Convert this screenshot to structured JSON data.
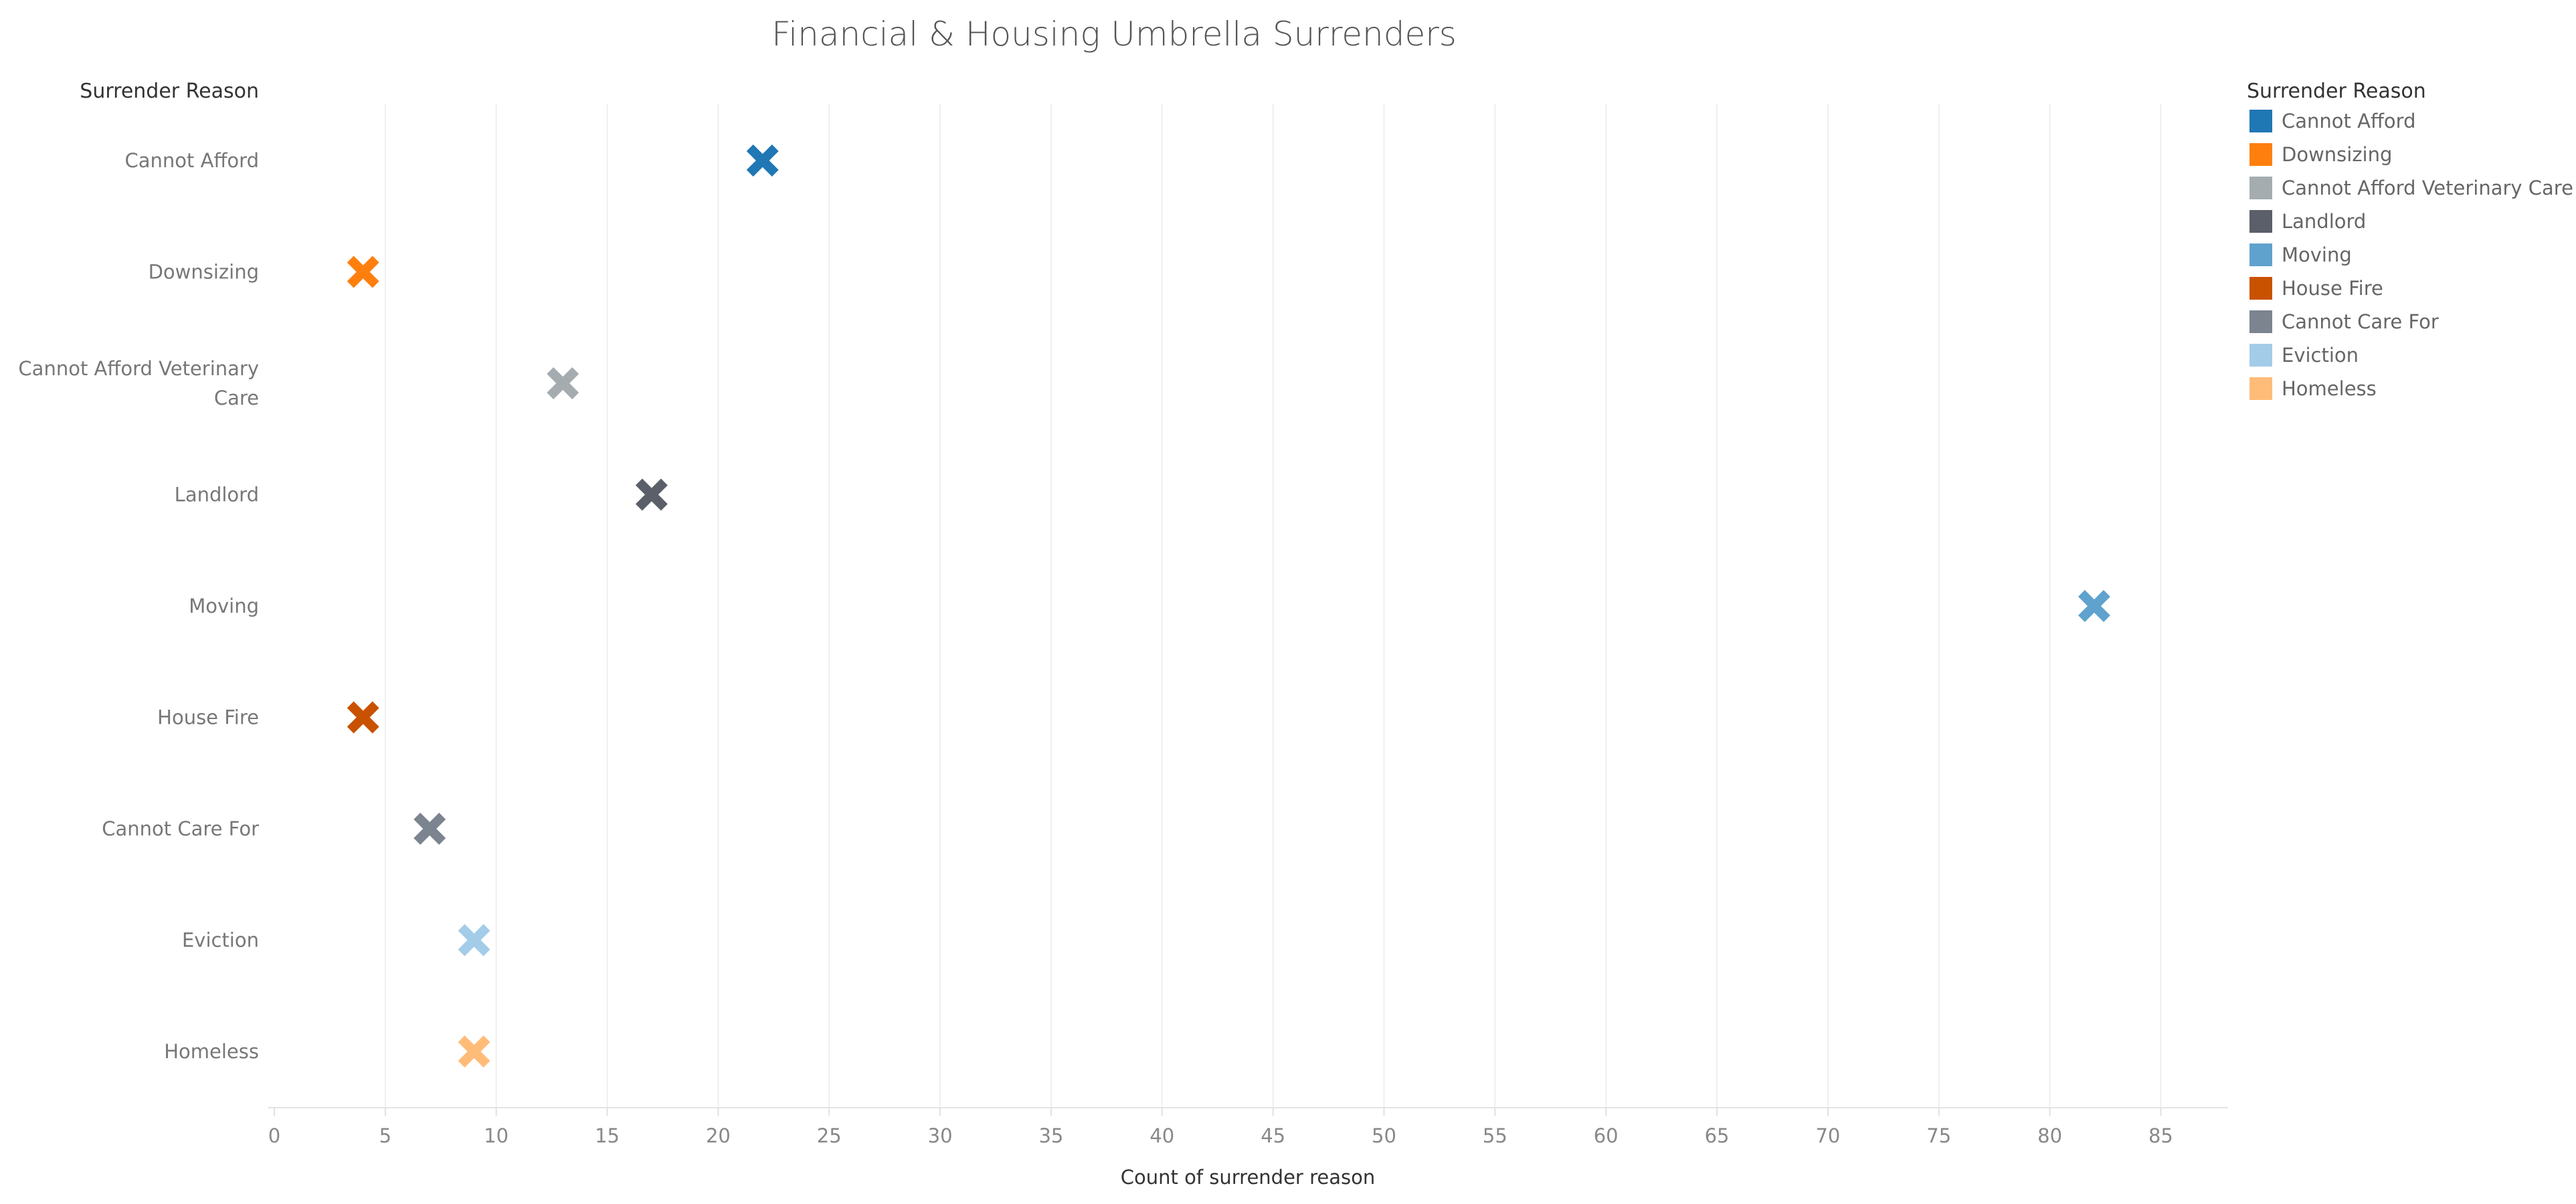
{
  "chart_data": {
    "type": "scatter",
    "title": "Financial & Housing Umbrella Surrenders",
    "row_header": "Surrender Reason",
    "xlabel": "Count of surrender reason",
    "xlim": [
      0,
      88
    ],
    "x_ticks": [
      0,
      5,
      10,
      15,
      20,
      25,
      30,
      35,
      40,
      45,
      50,
      55,
      60,
      65,
      70,
      75,
      80,
      85
    ],
    "grid": true,
    "marker": "x",
    "categories": [
      "Cannot Afford",
      "Downsizing",
      "Cannot Afford Veterinary Care",
      "Landlord",
      "Moving",
      "House Fire",
      "Cannot Care For",
      "Eviction",
      "Homeless"
    ],
    "category_display_lines": [
      [
        "Cannot Afford"
      ],
      [
        "Downsizing"
      ],
      [
        "Cannot Afford Veterinary",
        "Care"
      ],
      [
        "Landlord"
      ],
      [
        "Moving"
      ],
      [
        "House Fire"
      ],
      [
        "Cannot Care For"
      ],
      [
        "Eviction"
      ],
      [
        "Homeless"
      ]
    ],
    "values": [
      22,
      4,
      13,
      17,
      82,
      4,
      7,
      9,
      9
    ],
    "colors": [
      "#1f77b4",
      "#ff7f0e",
      "#a5acaf",
      "#5a5f69",
      "#5fa2ce",
      "#c85200",
      "#7b848f",
      "#a3cce9",
      "#ffbc79"
    ],
    "legend": {
      "title": "Surrender Reason",
      "position": "top-right",
      "items": [
        {
          "label": "Cannot Afford",
          "color": "#1f77b4"
        },
        {
          "label": "Downsizing",
          "color": "#ff7f0e"
        },
        {
          "label": "Cannot Afford Veterinary Care",
          "color": "#a5acaf"
        },
        {
          "label": "Landlord",
          "color": "#5a5f69"
        },
        {
          "label": "Moving",
          "color": "#5fa2ce"
        },
        {
          "label": "House Fire",
          "color": "#c85200"
        },
        {
          "label": "Cannot Care For",
          "color": "#7b848f"
        },
        {
          "label": "Eviction",
          "color": "#a3cce9"
        },
        {
          "label": "Homeless",
          "color": "#ffbc79"
        }
      ]
    }
  }
}
